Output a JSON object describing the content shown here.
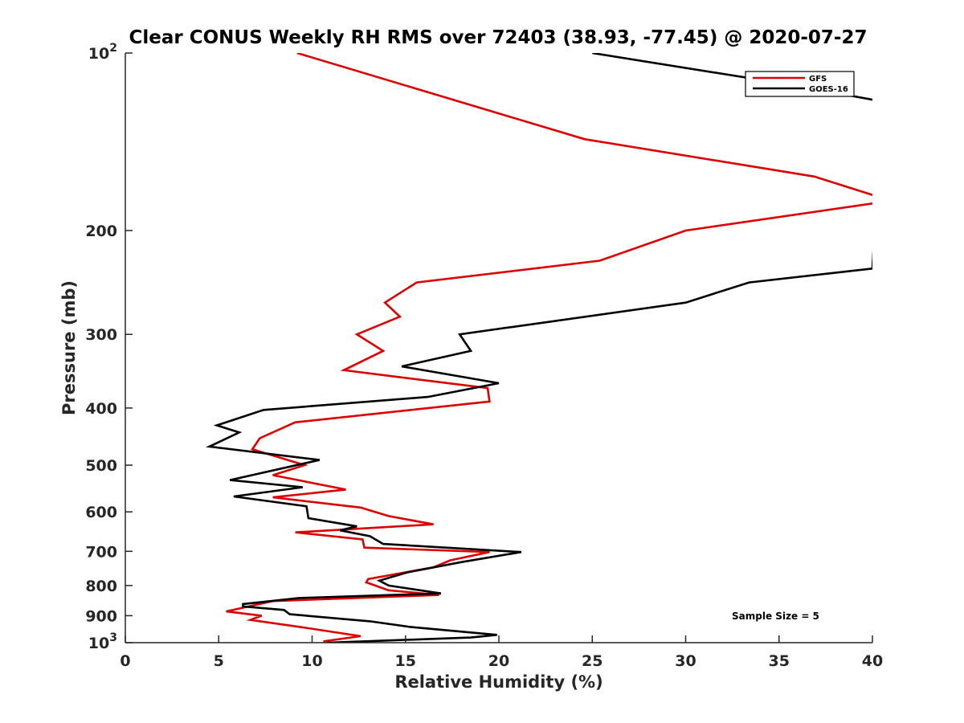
{
  "chart_data": {
    "type": "line",
    "title": "Clear CONUS Weekly RH RMS over 72403 (38.93, -77.45) @ 2020-07-27",
    "xlabel": "Relative Humidity (%)",
    "ylabel": "Pressure (mb)",
    "xlim": [
      0,
      40
    ],
    "ylim": [
      100,
      1000
    ],
    "y_scale": "log",
    "y_reversed": true,
    "grid": false,
    "legend_position": "top-right",
    "x_ticks": [
      0,
      5,
      10,
      15,
      20,
      25,
      30,
      35,
      40
    ],
    "x_tick_labels": [
      "0",
      "5",
      "10",
      "15",
      "20",
      "25",
      "30",
      "35",
      "40"
    ],
    "y_ticks": [
      {
        "value": 100,
        "base": "10",
        "exp": "2"
      },
      {
        "value": 200,
        "label": "200"
      },
      {
        "value": 300,
        "label": "300"
      },
      {
        "value": 400,
        "label": "400"
      },
      {
        "value": 500,
        "label": "500"
      },
      {
        "value": 600,
        "label": "600"
      },
      {
        "value": 700,
        "label": "700"
      },
      {
        "value": 800,
        "label": "800"
      },
      {
        "value": 900,
        "label": "900"
      },
      {
        "value": 1000,
        "base": "10",
        "exp": "3"
      }
    ],
    "series": [
      {
        "name": "GFS",
        "color": "#dd0000",
        "points": [
          [
            9.2,
            100
          ],
          [
            24.6,
            140
          ],
          [
            36.9,
            162
          ],
          [
            40,
            174
          ],
          [
            40.5,
            179
          ],
          [
            30.0,
            200
          ],
          [
            25.4,
            225
          ],
          [
            15.6,
            245
          ],
          [
            13.9,
            265
          ],
          [
            14.7,
            280
          ],
          [
            12.4,
            300
          ],
          [
            13.8,
            320
          ],
          [
            11.7,
            345
          ],
          [
            19.4,
            370
          ],
          [
            19.5,
            390
          ],
          [
            9.1,
            423
          ],
          [
            7.2,
            450
          ],
          [
            6.8,
            470
          ],
          [
            9.6,
            500
          ],
          [
            7.9,
            520
          ],
          [
            11.8,
            550
          ],
          [
            7.9,
            567
          ],
          [
            12.6,
            590
          ],
          [
            14.1,
            610
          ],
          [
            16.5,
            630
          ],
          [
            9.1,
            650
          ],
          [
            12.7,
            668
          ],
          [
            12.8,
            690
          ],
          [
            19.5,
            702
          ],
          [
            17.4,
            725
          ],
          [
            16.5,
            745
          ],
          [
            13.0,
            780
          ],
          [
            12.9,
            790
          ],
          [
            14.1,
            815
          ],
          [
            16.8,
            830
          ],
          [
            7.9,
            850
          ],
          [
            5.4,
            885
          ],
          [
            7.3,
            900
          ],
          [
            6.7,
            915
          ],
          [
            9.8,
            945
          ],
          [
            12.6,
            975
          ],
          [
            10.6,
            995
          ]
        ]
      },
      {
        "name": "GOES-16",
        "color": "#000000",
        "points": [
          [
            25.0,
            100
          ],
          [
            35.5,
            113
          ],
          [
            40,
            120
          ],
          [
            40.5,
            122
          ],
          [
            40,
            232
          ],
          [
            33.4,
            245
          ],
          [
            30.0,
            265
          ],
          [
            17.9,
            300
          ],
          [
            18.5,
            320
          ],
          [
            14.8,
            340
          ],
          [
            20.0,
            363
          ],
          [
            16.2,
            383
          ],
          [
            7.4,
            403
          ],
          [
            4.9,
            428
          ],
          [
            6.1,
            440
          ],
          [
            4.5,
            465
          ],
          [
            10.4,
            490
          ],
          [
            5.6,
            530
          ],
          [
            9.5,
            545
          ],
          [
            5.8,
            565
          ],
          [
            9.7,
            587
          ],
          [
            9.8,
            615
          ],
          [
            12.4,
            635
          ],
          [
            11.5,
            645
          ],
          [
            13.1,
            660
          ],
          [
            13.8,
            680
          ],
          [
            21.2,
            702
          ],
          [
            18.0,
            730
          ],
          [
            15.1,
            760
          ],
          [
            13.6,
            785
          ],
          [
            14.1,
            800
          ],
          [
            16.9,
            825
          ],
          [
            9.3,
            840
          ],
          [
            6.3,
            860
          ],
          [
            6.3,
            868
          ],
          [
            8.5,
            880
          ],
          [
            8.8,
            895
          ],
          [
            13.1,
            920
          ],
          [
            15.2,
            940
          ],
          [
            19.9,
            970
          ],
          [
            18.5,
            980
          ],
          [
            10.8,
            1000
          ]
        ]
      }
    ],
    "annotations": [
      {
        "text": "Sample Size = 5"
      }
    ]
  }
}
